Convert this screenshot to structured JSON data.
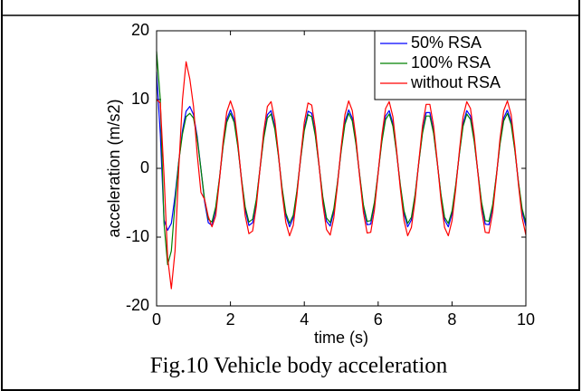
{
  "chart_data": {
    "type": "line",
    "caption": "Fig.10 Vehicle body acceleration",
    "xlabel": "time (s)",
    "ylabel": "acceleration (m/s2)",
    "xlim": [
      0,
      10
    ],
    "xticks": [
      0,
      2,
      4,
      6,
      8,
      10
    ],
    "ylim": [
      -20,
      20
    ],
    "yticks": [
      -20,
      -10,
      0,
      10,
      20
    ],
    "legend": "upper right",
    "x": [
      0,
      0.1,
      0.2,
      0.3,
      0.4,
      0.5,
      0.6,
      0.7,
      0.8,
      0.9,
      1,
      1.1,
      1.2,
      1.3,
      1.4,
      1.5,
      1.6,
      1.7,
      1.8,
      1.9,
      2,
      2.1,
      2.2,
      2.3,
      2.4,
      2.5,
      2.6,
      2.7,
      2.8,
      2.9,
      3,
      3.1,
      3.2,
      3.3,
      3.4,
      3.5,
      3.6,
      3.7,
      3.8,
      3.9,
      4,
      4.1,
      4.2,
      4.3,
      4.4,
      4.5,
      4.6,
      4.7,
      4.8,
      4.9,
      5,
      5.1,
      5.2,
      5.3,
      5.4,
      5.5,
      5.6,
      5.7,
      5.8,
      5.9,
      6,
      6.1,
      6.2,
      6.3,
      6.4,
      6.5,
      6.6,
      6.7,
      6.8,
      6.9,
      7,
      7.1,
      7.2,
      7.3,
      7.4,
      7.5,
      7.6,
      7.7,
      7.8,
      7.9,
      8,
      8.1,
      8.2,
      8.3,
      8.4,
      8.5,
      8.6,
      8.7,
      8.8,
      8.9,
      9,
      9.1,
      9.2,
      9.3,
      9.4,
      9.5,
      9.6,
      9.7,
      9.8,
      9.9,
      10
    ],
    "series": [
      {
        "name": "50% RSA",
        "color": "#0000ff",
        "values": [
          14,
          5,
          -7.5,
          -9,
          -8,
          -4,
          1,
          5.5,
          8.3,
          9,
          7.8,
          4.6,
          -0.1,
          -4.8,
          -7.9,
          -8.3,
          -6.0,
          -1.6,
          3.3,
          7.1,
          8.5,
          7.1,
          3.3,
          -1.6,
          -6.0,
          -8.3,
          -7.9,
          -4.8,
          -0.1,
          4.6,
          7.8,
          8.4,
          6.1,
          1.9,
          -3.1,
          -6.9,
          -8.5,
          -7.2,
          -3.5,
          1.4,
          5.8,
          8.3,
          8.0,
          5.0,
          0.4,
          -4.4,
          -7.7,
          -8.4,
          -6.3,
          -2.1,
          2.8,
          6.8,
          8.5,
          7.3,
          3.7,
          -1.1,
          -5.6,
          -8.2,
          -8.1,
          -5.2,
          -0.6,
          4.2,
          7.6,
          8.4,
          6.5,
          2.3,
          -2.6,
          -6.6,
          -8.5,
          -7.5,
          -4.0,
          0.9,
          5.4,
          8.1,
          8.1,
          5.4,
          0.9,
          -4.0,
          -7.5,
          -8.5,
          -6.6,
          -2.6,
          2.3,
          6.5,
          8.4,
          7.6,
          4.2,
          -0.6,
          -5.2,
          -8.1,
          -8.2,
          -5.6,
          -1.1,
          3.7,
          7.3,
          8.5,
          6.8,
          2.8,
          -2.1,
          -6.3,
          -8.4
        ]
      },
      {
        "name": "100% RSA",
        "color": "#008000",
        "values": [
          17,
          10,
          -8,
          -14,
          -12,
          -5,
          1,
          5,
          7.5,
          8,
          7.3,
          4.3,
          -0.1,
          -4.5,
          -7.4,
          -7.8,
          -5.6,
          -1.5,
          3.1,
          6.7,
          8.0,
          6.7,
          3.1,
          -1.5,
          -5.6,
          -7.8,
          -7.4,
          -4.5,
          -0.1,
          4.3,
          7.3,
          7.9,
          5.7,
          1.8,
          -2.9,
          -6.5,
          -8.0,
          -6.8,
          -3.3,
          1.3,
          5.5,
          7.8,
          7.5,
          4.7,
          0.4,
          -4.1,
          -7.2,
          -7.9,
          -5.9,
          -2.0,
          2.6,
          6.4,
          8.0,
          6.9,
          3.5,
          -1.0,
          -5.3,
          -7.7,
          -7.6,
          -4.9,
          -0.6,
          3.9,
          7.1,
          7.9,
          6.1,
          2.2,
          -2.4,
          -6.2,
          -8.0,
          -7.1,
          -3.8,
          0.8,
          5.1,
          7.6,
          7.6,
          5.1,
          0.8,
          -3.8,
          -7.1,
          -8.0,
          -6.2,
          -2.4,
          2.2,
          6.1,
          7.9,
          7.1,
          3.9,
          -0.6,
          -4.9,
          -7.6,
          -7.7,
          -5.3,
          -1.0,
          3.5,
          6.9,
          8.0,
          6.4,
          2.6,
          -2.0,
          -5.9,
          -7.9
        ]
      },
      {
        "name": "without RSA",
        "color": "#ff0000",
        "values": [
          10,
          9.5,
          -1,
          -13,
          -17.5,
          -12,
          0,
          10,
          15.5,
          13,
          9.0,
          2,
          -3.5,
          -4.5,
          -7,
          -8.5,
          -6.9,
          -1.8,
          3.8,
          8.2,
          9.8,
          8.2,
          3.8,
          -1.8,
          -6.9,
          -9.5,
          -9.1,
          -5.5,
          -0.1,
          5.3,
          9.0,
          9.7,
          7.0,
          2.2,
          -3.6,
          -7.9,
          -9.8,
          -8.3,
          -4.0,
          1.6,
          6.7,
          9.5,
          9.2,
          5.8,
          0.5,
          -5.1,
          -8.9,
          -9.7,
          -7.2,
          -2.4,
          3.2,
          7.8,
          9.8,
          8.4,
          4.3,
          -1.3,
          -6.4,
          -9.4,
          -9.3,
          -6.0,
          -0.7,
          4.8,
          8.7,
          9.7,
          7.5,
          2.6,
          -3.0,
          -7.6,
          -9.8,
          -8.6,
          -4.6,
          1.0,
          6.2,
          9.3,
          9.3,
          6.2,
          1.0,
          -4.6,
          -8.6,
          -9.8,
          -7.6,
          -3.0,
          2.6,
          7.5,
          9.7,
          8.7,
          4.8,
          -0.7,
          -6.0,
          -9.3,
          -9.4,
          -6.4,
          -1.3,
          4.3,
          8.4,
          9.8,
          7.8,
          3.2,
          -2.4,
          -7.2,
          -9.7
        ]
      }
    ]
  }
}
